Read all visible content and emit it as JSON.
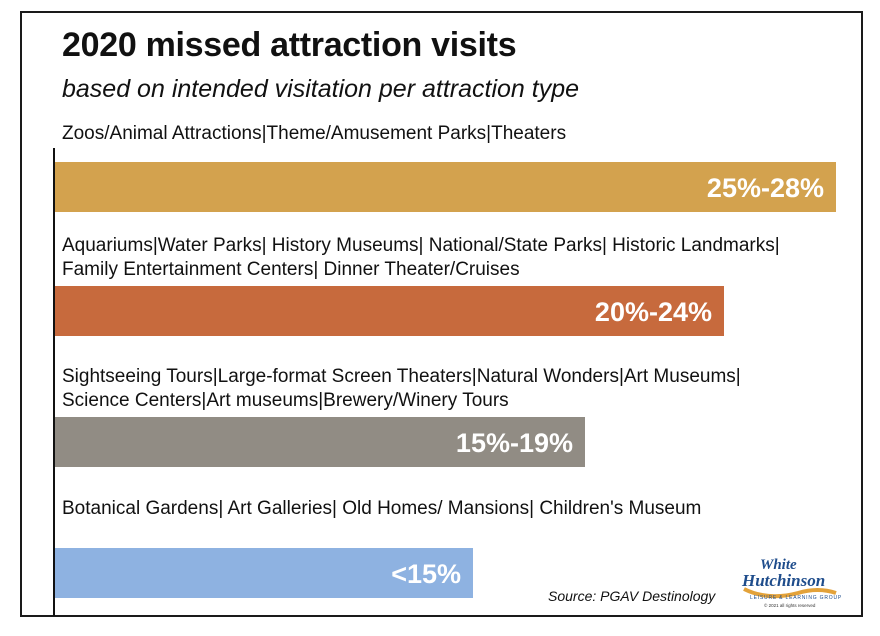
{
  "chart_data": {
    "type": "bar",
    "orientation": "horizontal",
    "title": "2020 missed attraction visits",
    "subtitle": "based on intended visitation per attraction type",
    "categories": [
      "Zoos/Animal Attractions|Theme/Amusement Parks|Theaters",
      "Aquariums|Water Parks| History Museums| National/State Parks| Historic Landmarks| Family Entertainment Centers| Dinner Theater/Cruises",
      "Sightseeing Tours|Large-format Screen Theaters|Natural Wonders|Art Museums| Science Centers|Art museums|Brewery/Winery Tours",
      "Botanical Gardens| Art Galleries| Old Homes/ Mansions| Children's Museum"
    ],
    "ranges": [
      [
        25,
        28
      ],
      [
        20,
        24
      ],
      [
        15,
        19
      ],
      [
        0,
        15
      ]
    ],
    "values": [
      28,
      24,
      19,
      15
    ],
    "data_labels": [
      "25%-28%",
      "20%-24%",
      "15%-19%",
      "<15%"
    ],
    "colors": [
      "#D3A24E",
      "#C76A3D",
      "#918C84",
      "#8EB2E1"
    ],
    "xlim": [
      0,
      28
    ],
    "grid": false,
    "legend": "none",
    "source": "Source: PGAV Destinology"
  },
  "logo": {
    "line1": "White",
    "line2": "Hutchinson",
    "tagline": "LEISURE & LEARNING GROUP",
    "copyright": "© 2021 all rights reserved"
  }
}
